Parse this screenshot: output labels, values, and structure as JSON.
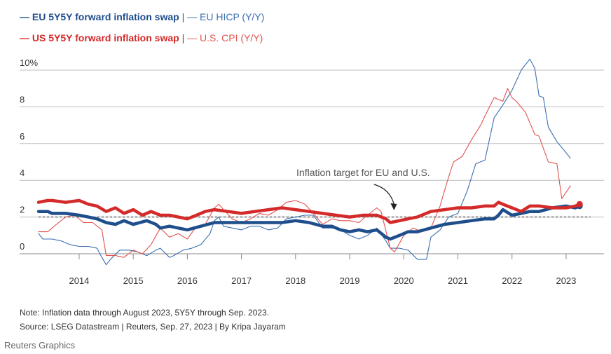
{
  "legend": {
    "eu_swap": "— EU 5Y5Y forward inflation swap",
    "eu_cpi": "— EU HICP (Y/Y)",
    "us_swap": "— US 5Y5Y forward inflation swap",
    "us_cpi": "— U.S. CPI (Y/Y)",
    "separator": "|"
  },
  "colors": {
    "eu": "#1f4e8c",
    "eu_thin": "#3a6fb0",
    "us": "#d42a2a",
    "us_thin": "#e0534f",
    "grid": "#bdbdbd",
    "target": "#777777"
  },
  "notes": {
    "line1": "Note: Inflation data through August 2023, 5Y5Y through Sep. 2023.",
    "line2": "Source: LSEG Datastream | Reuters, Sep. 27, 2023 | By Kripa Jayaram",
    "credit": "Reuters Graphics"
  },
  "chart_data": {
    "type": "line",
    "title": "",
    "xlabel": "",
    "ylabel": "",
    "ylim": [
      0,
      10
    ],
    "xlim": [
      2013.4,
      2024.2
    ],
    "yticks": [
      0,
      2,
      4,
      6,
      8,
      10
    ],
    "ytick_labels": [
      "0",
      "2",
      "4",
      "6",
      "8",
      "10%"
    ],
    "xticks": [
      2014,
      2015,
      2016,
      2017,
      2018,
      2019,
      2020,
      2021,
      2022,
      2023
    ],
    "xtick_labels": [
      "2014",
      "2015",
      "2016",
      "2017",
      "2018",
      "2019",
      "2020",
      "2021",
      "2022",
      "2023"
    ],
    "target": {
      "value": 2,
      "label": "Inflation target for EU and U.S."
    },
    "series": [
      {
        "name": "EU HICP (Y/Y)",
        "style": "thin",
        "color": "#3a6fb0",
        "x": [
          2013.75,
          2013.83,
          2013.92,
          2014.0,
          2014.17,
          2014.33,
          2014.5,
          2014.67,
          2014.83,
          2014.92,
          2015.0,
          2015.08,
          2015.25,
          2015.42,
          2015.58,
          2015.75,
          2015.92,
          2016.0,
          2016.17,
          2016.25,
          2016.42,
          2016.58,
          2016.75,
          2016.92,
          2017.0,
          2017.08,
          2017.17,
          2017.33,
          2017.5,
          2017.67,
          2017.83,
          2018.0,
          2018.17,
          2018.33,
          2018.5,
          2018.67,
          2018.83,
          2019.0,
          2019.17,
          2019.33,
          2019.5,
          2019.67,
          2019.83,
          2020.0,
          2020.17,
          2020.25,
          2020.42,
          2020.58,
          2020.75,
          2020.92,
          2021.0,
          2021.17,
          2021.33,
          2021.5,
          2021.67,
          2021.83,
          2022.0,
          2022.17,
          2022.33,
          2022.5,
          2022.67,
          2022.83,
          2022.92,
          2023.0,
          2023.08,
          2023.17,
          2023.33,
          2023.5,
          2023.58
        ],
        "values": [
          1.1,
          0.8,
          0.8,
          0.8,
          0.7,
          0.5,
          0.4,
          0.4,
          0.3,
          -0.2,
          -0.6,
          -0.3,
          0.2,
          0.2,
          0.1,
          -0.1,
          0.2,
          0.3,
          -0.2,
          -0.1,
          0.2,
          0.3,
          0.5,
          1.1,
          1.8,
          2.0,
          1.5,
          1.4,
          1.3,
          1.5,
          1.5,
          1.3,
          1.4,
          1.9,
          2.0,
          2.1,
          2.1,
          1.4,
          1.4,
          1.3,
          1.0,
          0.8,
          1.0,
          1.4,
          0.7,
          0.3,
          0.3,
          0.2,
          -0.3,
          -0.3,
          0.9,
          1.3,
          2.0,
          2.2,
          3.4,
          4.9,
          5.1,
          7.4,
          8.1,
          8.9,
          10.0,
          10.6,
          10.1,
          8.6,
          8.5,
          6.9,
          6.1,
          5.5,
          5.2
        ]
      },
      {
        "name": "U.S. CPI (Y/Y)",
        "style": "thin",
        "color": "#e0534f",
        "x": [
          2013.75,
          2013.92,
          2014.08,
          2014.25,
          2014.42,
          2014.58,
          2014.75,
          2014.92,
          2015.0,
          2015.17,
          2015.33,
          2015.5,
          2015.67,
          2015.83,
          2016.0,
          2016.17,
          2016.33,
          2016.5,
          2016.67,
          2016.83,
          2017.0,
          2017.08,
          2017.17,
          2017.33,
          2017.5,
          2017.67,
          2017.83,
          2018.0,
          2018.17,
          2018.33,
          2018.5,
          2018.67,
          2018.83,
          2019.0,
          2019.17,
          2019.33,
          2019.5,
          2019.67,
          2019.83,
          2020.0,
          2020.08,
          2020.25,
          2020.33,
          2020.5,
          2020.67,
          2020.83,
          2021.0,
          2021.17,
          2021.33,
          2021.42,
          2021.58,
          2021.75,
          2021.92,
          2022.0,
          2022.17,
          2022.33,
          2022.42,
          2022.5,
          2022.58,
          2022.75,
          2022.92,
          2023.0,
          2023.17,
          2023.33,
          2023.42,
          2023.58
        ],
        "values": [
          1.2,
          1.2,
          1.6,
          2.0,
          2.1,
          1.7,
          1.7,
          1.3,
          -0.1,
          -0.1,
          -0.2,
          0.2,
          0.0,
          0.5,
          1.4,
          0.9,
          1.1,
          0.8,
          1.5,
          1.6,
          2.5,
          2.7,
          2.4,
          1.9,
          1.7,
          1.9,
          2.2,
          2.1,
          2.4,
          2.8,
          2.9,
          2.7,
          2.2,
          1.6,
          1.9,
          1.8,
          1.8,
          1.7,
          2.1,
          2.5,
          2.3,
          0.3,
          0.1,
          1.0,
          1.4,
          1.2,
          1.4,
          2.6,
          4.2,
          5.0,
          5.3,
          6.2,
          7.0,
          7.5,
          8.5,
          8.3,
          9.0,
          8.5,
          8.3,
          7.7,
          6.5,
          6.4,
          5.0,
          4.9,
          3.0,
          3.7
        ]
      },
      {
        "name": "EU 5Y5Y forward inflation swap",
        "style": "thick",
        "color": "#1f4e8c",
        "x": [
          2013.75,
          2013.92,
          2014.0,
          2014.25,
          2014.5,
          2014.67,
          2014.83,
          2015.0,
          2015.17,
          2015.33,
          2015.5,
          2015.75,
          2015.92,
          2016.0,
          2016.17,
          2016.33,
          2016.5,
          2016.75,
          2017.0,
          2017.25,
          2017.5,
          2017.75,
          2018.0,
          2018.25,
          2018.5,
          2018.75,
          2019.0,
          2019.17,
          2019.33,
          2019.5,
          2019.67,
          2019.83,
          2020.0,
          2020.17,
          2020.25,
          2020.42,
          2020.58,
          2020.75,
          2021.0,
          2021.25,
          2021.5,
          2021.75,
          2022.0,
          2022.17,
          2022.25,
          2022.33,
          2022.5,
          2022.67,
          2022.83,
          2023.0,
          2023.25,
          2023.5,
          2023.67,
          2023.75
        ],
        "values": [
          2.3,
          2.3,
          2.2,
          2.2,
          2.1,
          2.0,
          1.9,
          1.7,
          1.6,
          1.8,
          1.6,
          1.8,
          1.6,
          1.4,
          1.5,
          1.4,
          1.3,
          1.5,
          1.7,
          1.7,
          1.7,
          1.7,
          1.7,
          1.7,
          1.8,
          1.7,
          1.5,
          1.5,
          1.3,
          1.2,
          1.3,
          1.2,
          1.3,
          0.9,
          0.8,
          1.0,
          1.2,
          1.2,
          1.4,
          1.6,
          1.7,
          1.8,
          1.9,
          1.9,
          2.1,
          2.4,
          2.1,
          2.2,
          2.3,
          2.3,
          2.5,
          2.6,
          2.5,
          2.6
        ]
      },
      {
        "name": "US 5Y5Y forward inflation swap",
        "style": "thick",
        "color": "#d42a2a",
        "x": [
          2013.75,
          2013.92,
          2014.0,
          2014.25,
          2014.5,
          2014.67,
          2014.83,
          2015.0,
          2015.17,
          2015.33,
          2015.5,
          2015.67,
          2015.83,
          2016.0,
          2016.17,
          2016.33,
          2016.5,
          2016.67,
          2016.83,
          2017.0,
          2017.25,
          2017.5,
          2017.75,
          2018.0,
          2018.25,
          2018.5,
          2018.75,
          2019.0,
          2019.25,
          2019.5,
          2019.75,
          2020.0,
          2020.17,
          2020.25,
          2020.42,
          2020.58,
          2020.75,
          2021.0,
          2021.25,
          2021.5,
          2021.75,
          2022.0,
          2022.17,
          2022.25,
          2022.33,
          2022.5,
          2022.67,
          2022.83,
          2023.0,
          2023.25,
          2023.5,
          2023.67,
          2023.75
        ],
        "values": [
          2.8,
          2.9,
          2.9,
          2.8,
          2.9,
          2.7,
          2.6,
          2.3,
          2.5,
          2.2,
          2.4,
          2.1,
          2.3,
          2.1,
          2.1,
          2.0,
          1.9,
          2.1,
          2.3,
          2.4,
          2.3,
          2.2,
          2.3,
          2.4,
          2.5,
          2.4,
          2.3,
          2.2,
          2.1,
          2.0,
          2.1,
          2.1,
          1.9,
          1.7,
          1.8,
          1.9,
          2.0,
          2.3,
          2.4,
          2.5,
          2.5,
          2.6,
          2.6,
          2.8,
          2.7,
          2.5,
          2.3,
          2.6,
          2.6,
          2.5,
          2.5,
          2.6,
          2.7
        ]
      }
    ]
  }
}
